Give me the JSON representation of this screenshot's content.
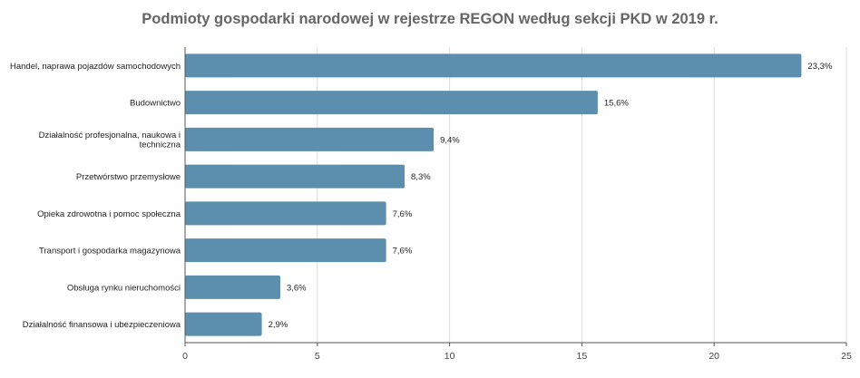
{
  "chart_data": {
    "type": "bar",
    "orientation": "horizontal",
    "title": "Podmioty gospodarki narodowej w rejestrze REGON według sekcji PKD w 2019 r.",
    "xlabel": "",
    "ylabel": "",
    "xlim": [
      0,
      25
    ],
    "xticks": [
      0,
      5,
      10,
      15,
      20,
      25
    ],
    "grid": true,
    "legend": "none",
    "bar_color": "#5b8fad",
    "categories": [
      [
        "Handel, naprawa pojazdów samochodowych"
      ],
      [
        "Budownictwo"
      ],
      [
        "Działalność profesjonalna, naukowa i",
        "techniczna"
      ],
      [
        "Przetwórstwo przemysłowe"
      ],
      [
        "Opieka zdrowotna i pomoc społeczna"
      ],
      [
        "Transport i gospodarka magazynowa"
      ],
      [
        "Obsługa rynku nieruchomości"
      ],
      [
        "Działalność finansowa i ubezpieczeniowa"
      ]
    ],
    "values": [
      23.3,
      15.6,
      9.4,
      8.3,
      7.6,
      7.6,
      3.6,
      2.9
    ],
    "value_labels": [
      "23,3%",
      "15,6%",
      "9,4%",
      "8,3%",
      "7,6%",
      "7,6%",
      "3,6%",
      "2,9%"
    ]
  }
}
